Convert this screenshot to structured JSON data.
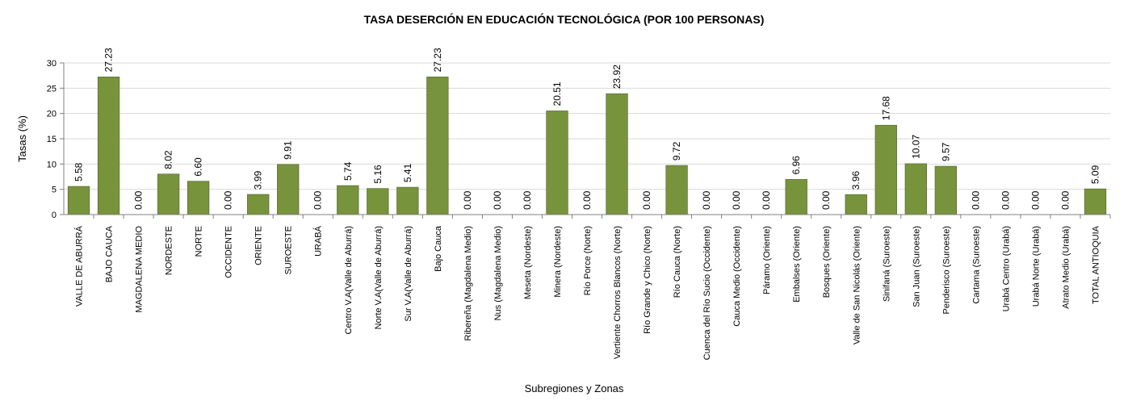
{
  "chart_data": {
    "type": "bar",
    "title": "TASA DESERCIÓN EN EDUCACIÓN TECNOLÓGICA (POR 100 PERSONAS)",
    "xlabel": "Subregiones y Zonas",
    "ylabel": "Tasas (%)",
    "ylim": [
      0,
      30
    ],
    "yticks": [
      "0",
      "5",
      "10",
      "15",
      "20",
      "25",
      "30"
    ],
    "grid": true,
    "legend": "none",
    "categories": [
      "VALLE DE ABURRÁ",
      "BAJO CAUCA",
      "MAGDALENA MEDIO",
      "NORDESTE",
      "NORTE",
      "OCCIDENTE",
      "ORIENTE",
      "SUROESTE",
      "URABÁ",
      "Centro V.A(Valle de Aburrá)",
      "Norte V.A(Valle de Aburrá)",
      "Sur V.A(Valle de Aburrá)",
      "Bajo Cauca",
      "Ribereña (Magdalena Medio)",
      "Nus (Magdalena Medio)",
      "Meseta (Nordeste)",
      "Minera (Nordeste)",
      "Río Porce (Norte)",
      "Vertiente Chorros Blancos (Norte)",
      "Río Grande y Chico (Norte)",
      "Río Cauca (Norte)",
      "Cuenca del Río Sucio (Occidente)",
      "Cauca Medio (Occidente)",
      "Páramo (Oriente)",
      "Embalses (Oriente)",
      "Bosques (Oriente)",
      "Valle de San Nicolás (Oriente)",
      "Sinifaná (Suroeste)",
      "San Juan (Suroeste)",
      "Penderisco (Suroeste)",
      "Cartama (Suroeste)",
      "Urabá Centro (Urabá)",
      "Urabá Norte (Urabá)",
      "Atrato Medio (Urabá)",
      "TOTAL ANTIOQUIA"
    ],
    "value_labels": [
      "5.58",
      "27.23",
      "0.00",
      "8.02",
      "6.60",
      "0.00",
      "3.99",
      "9.91",
      "0.00",
      "5.74",
      "5.16",
      "5.41",
      "27.23",
      "0.00",
      "0.00",
      "0.00",
      "20.51",
      "0.00",
      "23.92",
      "0.00",
      "9.72",
      "0.00",
      "0.00",
      "0.00",
      "6.96",
      "0.00",
      "3.96",
      "17.68",
      "10.07",
      "9.57",
      "0.00",
      "0.00",
      "0.00",
      "0.00",
      "5.09"
    ],
    "values": [
      5.58,
      27.23,
      0.0,
      8.02,
      6.6,
      0.0,
      3.99,
      9.91,
      0.0,
      5.74,
      5.16,
      5.41,
      27.23,
      0.0,
      0.0,
      0.0,
      20.51,
      0.0,
      23.92,
      0.0,
      9.72,
      0.0,
      0.0,
      0.0,
      6.96,
      0.0,
      3.96,
      17.68,
      10.07,
      9.57,
      0.0,
      0.0,
      0.0,
      0.0,
      5.09
    ],
    "colors": {
      "bar": "#77933C",
      "bar_stroke": "#4E6228",
      "title": "#4F6228",
      "grid": "#D9D9D9",
      "axis": "#808080"
    }
  }
}
